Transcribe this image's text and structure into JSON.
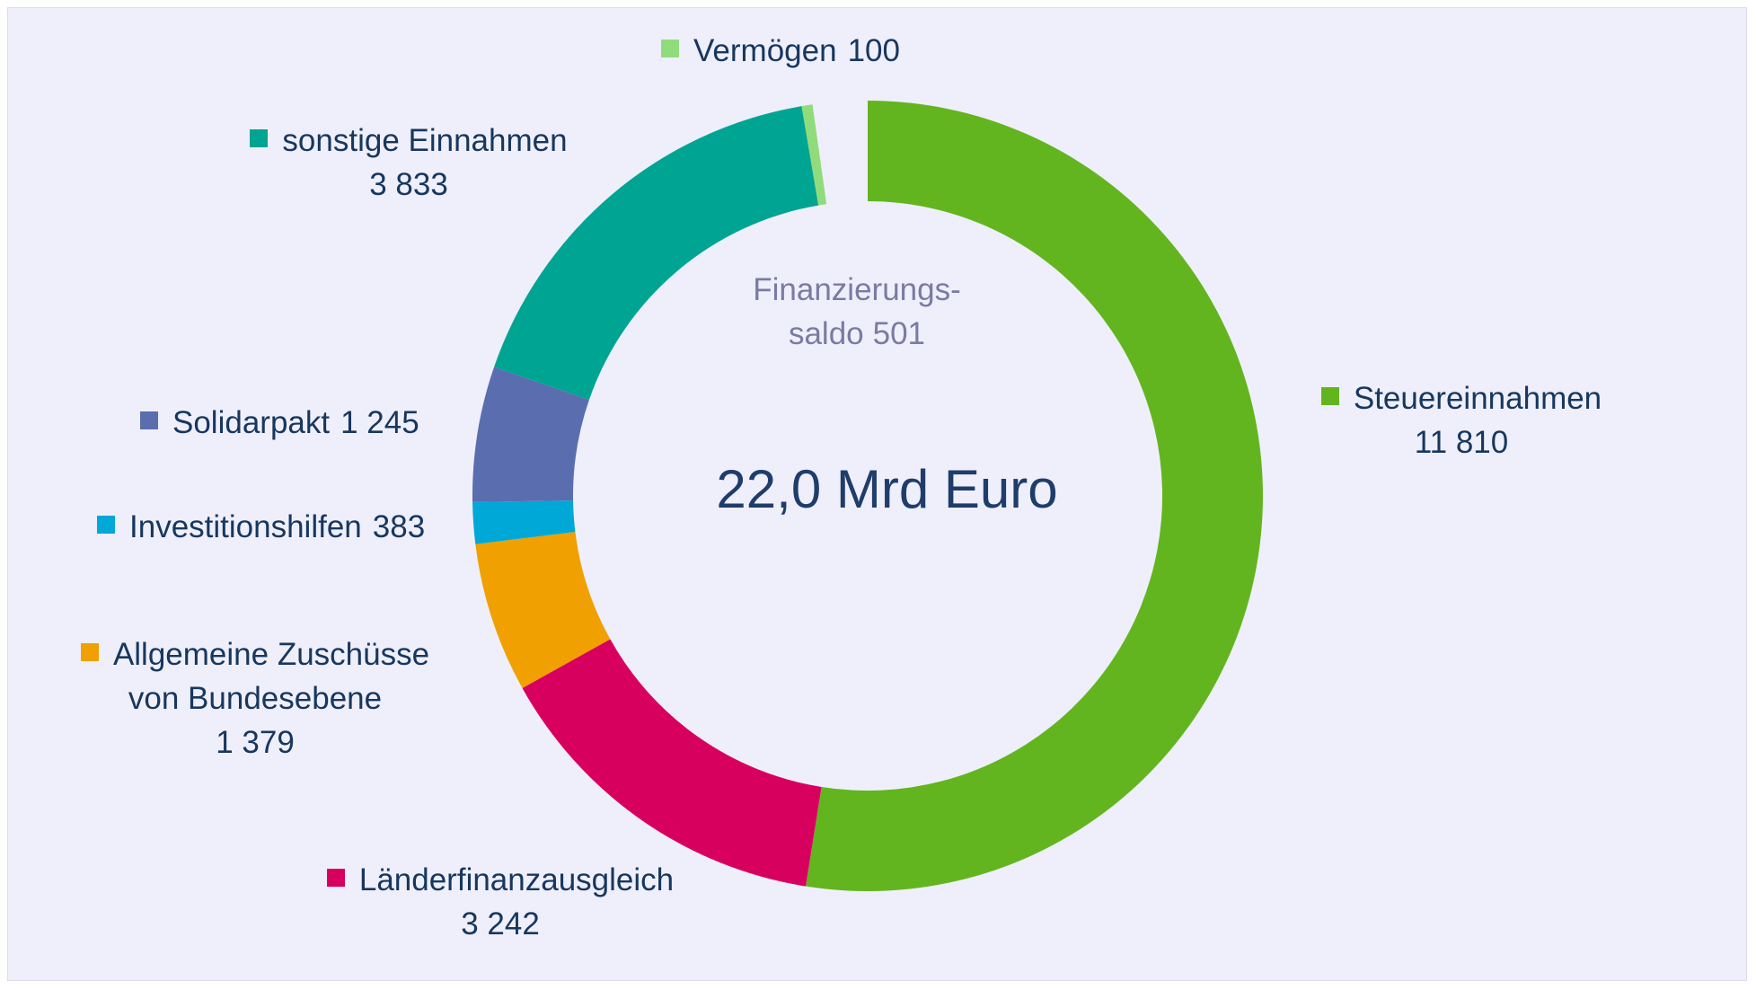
{
  "chart_data": {
    "type": "donut",
    "title": "22,0 Mrd Euro",
    "categories": [
      "Steuereinnahmen",
      "Länderfinanzausgleich",
      "Allgemeine Zuschüsse von Bundesebene",
      "Investitionshilfen",
      "Solidarpakt",
      "sonstige Einnahmen",
      "Vermögen",
      "Finanzierungs-saldo"
    ],
    "values": [
      11810,
      3242,
      1379,
      383,
      1245,
      3833,
      100,
      501
    ],
    "value_labels": [
      "11 810",
      "3 242",
      "1 379",
      "383",
      "1 245",
      "3 833",
      "100",
      "501"
    ],
    "colors": [
      "#62b51e",
      "#d8005f",
      "#f0a000",
      "#00a8d8",
      "#5a6daf",
      "#00a493",
      "#90dc7c",
      "#efeffb"
    ]
  }
}
